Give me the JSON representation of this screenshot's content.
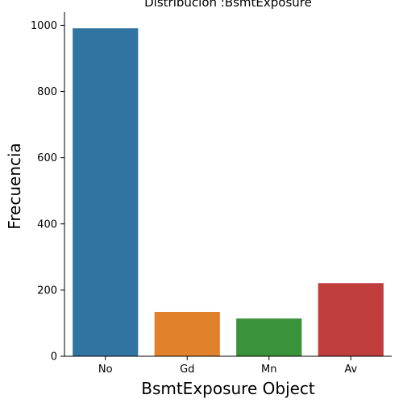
{
  "chart_data": {
    "type": "bar",
    "title": "Distribución :BsmtExposure",
    "xlabel": "BsmtExposure Object",
    "ylabel": "Frecuencia",
    "categories": [
      "No",
      "Gd",
      "Mn",
      "Av"
    ],
    "values": [
      991,
      134,
      114,
      221
    ],
    "ylim": [
      0,
      1040
    ],
    "yticks": [
      0,
      200,
      400,
      600,
      800,
      1000
    ],
    "colors": [
      "#3274a1",
      "#e1812c",
      "#3a923a",
      "#c03d3e"
    ],
    "grid": false,
    "legend": "none"
  }
}
